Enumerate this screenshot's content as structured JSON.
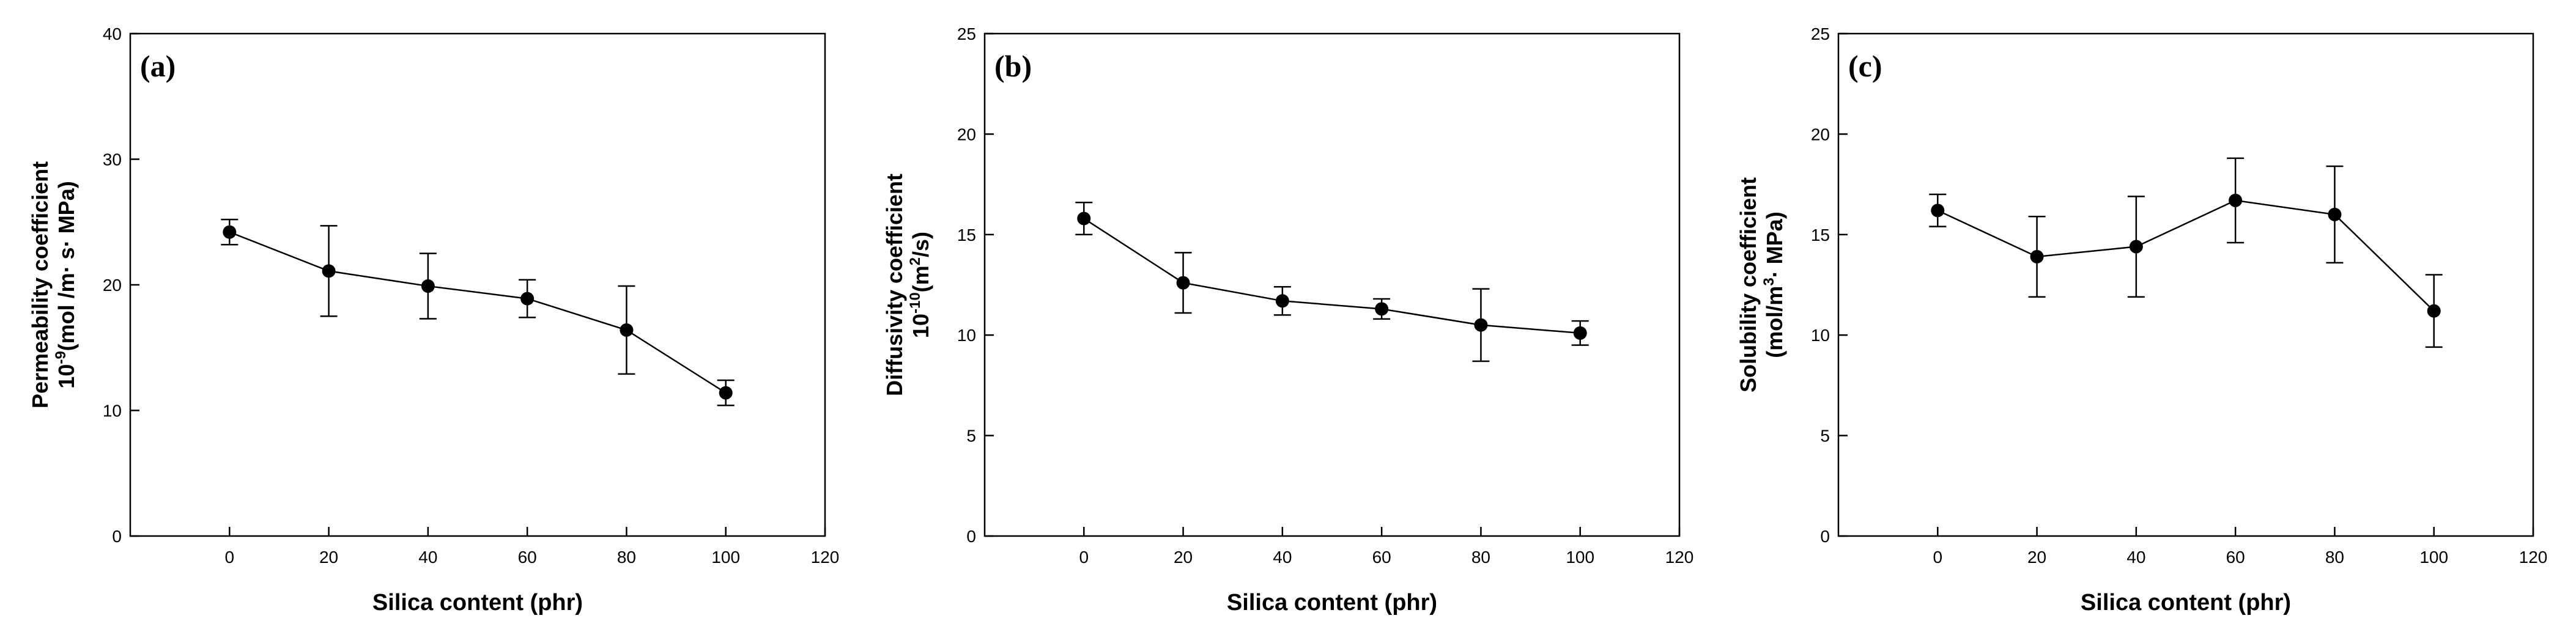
{
  "chart_data": [
    {
      "type": "line",
      "panel_label": "(a)",
      "title": "",
      "xlabel": "Silica content (phr)",
      "ylabel": {
        "line1": "Permeability coefficient",
        "line2_prefix": "10",
        "line2_exponent": "-9",
        "line2_suffix": "(mol /m· s· MPa)"
      },
      "xlim": [
        -20,
        120
      ],
      "ylim": [
        0,
        40
      ],
      "xticks": [
        0,
        20,
        40,
        60,
        80,
        100,
        120
      ],
      "yticks": [
        0,
        10,
        20,
        30,
        40
      ],
      "x": [
        0,
        20,
        40,
        60,
        80,
        100
      ],
      "values": [
        24.2,
        21.1,
        19.9,
        18.9,
        16.4,
        11.4
      ],
      "error": [
        1.0,
        3.6,
        2.6,
        1.5,
        3.5,
        1.0
      ],
      "marker": "filled-circle"
    },
    {
      "type": "line",
      "panel_label": "(b)",
      "title": "",
      "xlabel": "Silica content (phr)",
      "ylabel": {
        "line1": "Diffusivity coefficient",
        "line2_prefix": "10",
        "line2_exponent": "-10",
        "line2_suffix": "(m",
        "line2_exponent2": "2",
        "line2_suffix2": "/s)"
      },
      "xlim": [
        -20,
        120
      ],
      "ylim": [
        0,
        25
      ],
      "xticks": [
        0,
        20,
        40,
        60,
        80,
        100,
        120
      ],
      "yticks": [
        0,
        5,
        10,
        15,
        20,
        25
      ],
      "x": [
        0,
        20,
        40,
        60,
        80,
        100
      ],
      "values": [
        15.8,
        12.6,
        11.7,
        11.3,
        10.5,
        10.1
      ],
      "error": [
        0.8,
        1.5,
        0.7,
        0.5,
        1.8,
        0.6
      ],
      "marker": "filled-circle"
    },
    {
      "type": "line",
      "panel_label": "(c)",
      "title": "",
      "xlabel": "Silica content (phr)",
      "ylabel": {
        "line1": "Solubility coefficient",
        "line2_prefix": "(mol/m",
        "line2_exponent": "3",
        "line2_suffix": "· MPa)"
      },
      "xlim": [
        -20,
        120
      ],
      "ylim": [
        0,
        25
      ],
      "xticks": [
        0,
        20,
        40,
        60,
        80,
        100,
        120
      ],
      "yticks": [
        0,
        5,
        10,
        15,
        20,
        25
      ],
      "x": [
        0,
        20,
        40,
        60,
        80,
        100
      ],
      "values": [
        16.2,
        13.9,
        14.4,
        16.7,
        16.0,
        11.2
      ],
      "error": [
        0.8,
        2.0,
        2.5,
        2.1,
        2.4,
        1.8
      ],
      "marker": "filled-circle"
    }
  ]
}
